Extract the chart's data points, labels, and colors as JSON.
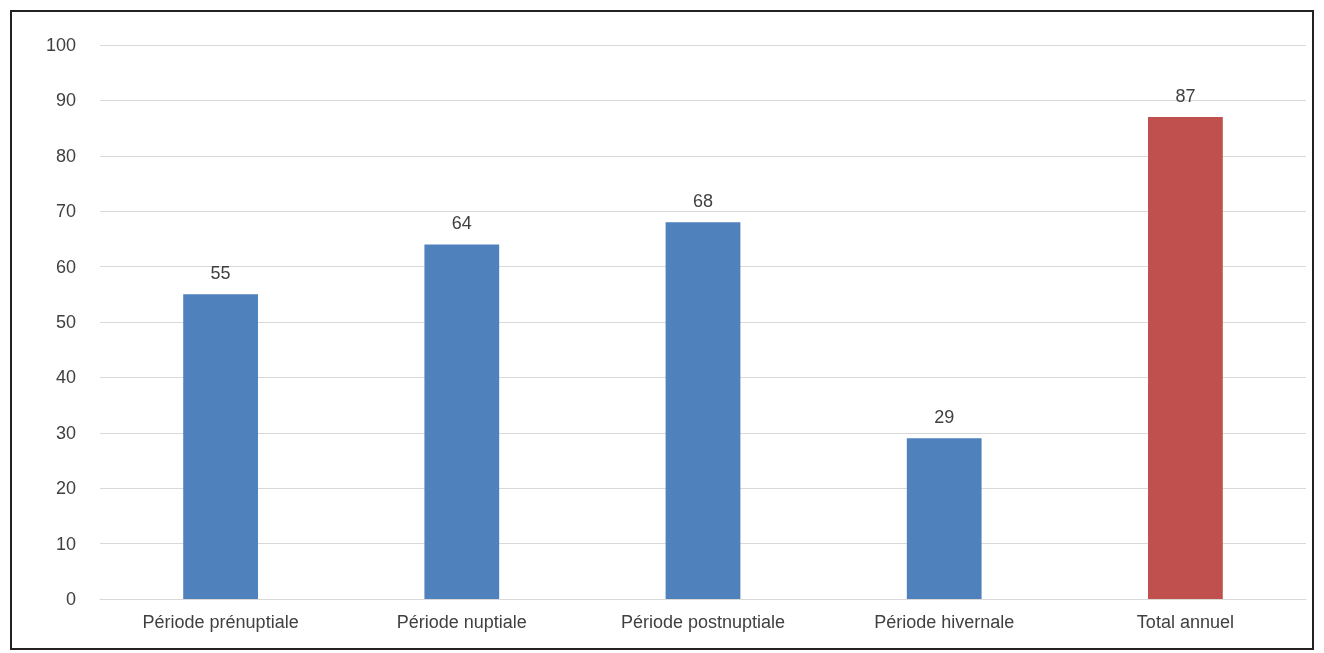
{
  "chart_data": {
    "type": "bar",
    "categories": [
      "Période prénuptiale",
      "Période nuptiale",
      "Période postnuptiale",
      "Période hivernale",
      "Total annuel"
    ],
    "values": [
      55,
      64,
      68,
      29,
      87
    ],
    "colors": [
      "#4f81bd",
      "#4f81bd",
      "#4f81bd",
      "#4f81bd",
      "#c0504d"
    ],
    "ylim": [
      0,
      100
    ],
    "yticks": [
      0,
      10,
      20,
      30,
      40,
      50,
      60,
      70,
      80,
      90,
      100
    ],
    "grid": "y",
    "data_labels": true
  }
}
